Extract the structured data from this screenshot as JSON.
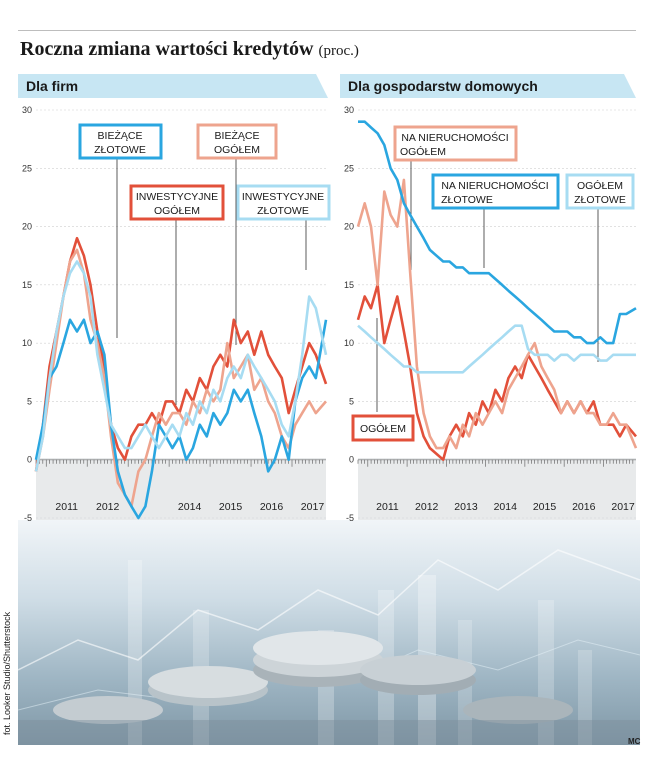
{
  "title": {
    "main": "Roczna zmiana wartości kredytów",
    "unit": "(proc.)"
  },
  "photo_credit": "fot. Looker Studio/Shutterstock",
  "initials": "MC",
  "colors": {
    "red": "#e2503a",
    "salmon": "#eea48e",
    "blue": "#2aa6e0",
    "lightblue": "#a7dcf2",
    "header_bg": "#c7e6f3"
  },
  "chart_data": [
    {
      "panel_title": "Dla firm",
      "type": "line",
      "ylim": [
        -5,
        30
      ],
      "yticks": [
        -5,
        0,
        5,
        10,
        15,
        20,
        25,
        30
      ],
      "xlim": [
        2010.75,
        2017.83
      ],
      "xtick_labels": [
        "2011",
        "2012",
        "2014",
        "2015",
        "2016",
        "2017"
      ],
      "series": [
        {
          "name": "INWESTYCYJNE OGÓŁEM",
          "color": "#e2503a",
          "x": [
            2010.75,
            2010.92,
            2011.08,
            2011.25,
            2011.42,
            2011.58,
            2011.75,
            2011.92,
            2012.08,
            2012.25,
            2012.42,
            2012.58,
            2012.75,
            2012.92,
            2013.08,
            2013.25,
            2013.42,
            2013.58,
            2013.75,
            2013.92,
            2014.08,
            2014.25,
            2014.42,
            2014.58,
            2014.75,
            2014.92,
            2015.08,
            2015.25,
            2015.42,
            2015.58,
            2015.75,
            2015.92,
            2016.08,
            2016.25,
            2016.42,
            2016.58,
            2016.75,
            2016.92,
            2017.08,
            2017.25,
            2017.42,
            2017.58,
            2017.83
          ],
          "y": [
            -1,
            3,
            8,
            11,
            14,
            17,
            19,
            17.5,
            15,
            11,
            8,
            3,
            1,
            0,
            2,
            3,
            3,
            4,
            3,
            5,
            5,
            4,
            6,
            5,
            7,
            6,
            8,
            9,
            8,
            12,
            10,
            11,
            9,
            11,
            9,
            8,
            7,
            4,
            6,
            8,
            10,
            9,
            6.5
          ]
        },
        {
          "name": "BIEŻĄCE OGÓŁEM",
          "color": "#eea48e",
          "x": [
            2010.75,
            2010.92,
            2011.08,
            2011.25,
            2011.42,
            2011.58,
            2011.75,
            2011.92,
            2012.08,
            2012.25,
            2012.42,
            2012.58,
            2012.75,
            2012.92,
            2013.08,
            2013.25,
            2013.42,
            2013.58,
            2013.75,
            2013.92,
            2014.08,
            2014.25,
            2014.42,
            2014.58,
            2014.75,
            2014.92,
            2015.08,
            2015.25,
            2015.42,
            2015.58,
            2015.75,
            2015.92,
            2016.08,
            2016.25,
            2016.42,
            2016.58,
            2016.75,
            2016.92,
            2017.08,
            2017.25,
            2017.42,
            2017.58,
            2017.83
          ],
          "y": [
            -1,
            2,
            6,
            10,
            14,
            17,
            18,
            16,
            12,
            10,
            7,
            2,
            -2,
            -3,
            -4,
            -1,
            0,
            2,
            4,
            3,
            4,
            4,
            3,
            5,
            4,
            6,
            5,
            6,
            10,
            7,
            8,
            9,
            6,
            7,
            5,
            4,
            2,
            1,
            3,
            4,
            5,
            4,
            5
          ]
        },
        {
          "name": "BIEŻĄCE ZŁOTOWE",
          "color": "#2aa6e0",
          "x": [
            2010.75,
            2010.92,
            2011.08,
            2011.25,
            2011.42,
            2011.58,
            2011.75,
            2011.92,
            2012.08,
            2012.25,
            2012.42,
            2012.58,
            2012.75,
            2012.92,
            2013.08,
            2013.25,
            2013.42,
            2013.58,
            2013.75,
            2013.92,
            2014.08,
            2014.25,
            2014.42,
            2014.58,
            2014.75,
            2014.92,
            2015.08,
            2015.25,
            2015.42,
            2015.58,
            2015.75,
            2015.92,
            2016.08,
            2016.25,
            2016.42,
            2016.58,
            2016.75,
            2016.92,
            2017.08,
            2017.25,
            2017.42,
            2017.58,
            2017.83
          ],
          "y": [
            0,
            3,
            7,
            8,
            10,
            12,
            11,
            12,
            10,
            11,
            9,
            3,
            -1,
            -3,
            -4,
            -5,
            -4,
            -1,
            3,
            2,
            1,
            2,
            0,
            1,
            3,
            2,
            4,
            3,
            4,
            6,
            5,
            6,
            4,
            2,
            -1,
            0,
            2,
            0,
            5,
            7,
            8,
            7,
            12
          ]
        },
        {
          "name": "INWESTYCYJNE ZŁOTOWE",
          "color": "#a7dcf2",
          "x": [
            2010.75,
            2010.92,
            2011.08,
            2011.25,
            2011.42,
            2011.58,
            2011.75,
            2011.92,
            2012.08,
            2012.25,
            2012.42,
            2012.58,
            2012.75,
            2012.92,
            2013.08,
            2013.25,
            2013.42,
            2013.58,
            2013.75,
            2013.92,
            2014.08,
            2014.25,
            2014.42,
            2014.58,
            2014.75,
            2014.92,
            2015.08,
            2015.25,
            2015.42,
            2015.58,
            2015.75,
            2015.92,
            2016.08,
            2016.25,
            2016.42,
            2016.58,
            2016.75,
            2016.92,
            2017.08,
            2017.25,
            2017.42,
            2017.58,
            2017.83
          ],
          "y": [
            -1,
            2,
            7,
            11,
            14,
            16,
            17,
            16,
            14,
            9,
            6,
            3,
            2,
            1,
            1,
            2,
            3,
            2,
            1,
            2,
            3,
            2,
            4,
            3,
            5,
            4,
            6,
            5,
            7,
            8,
            7,
            9,
            8,
            7,
            6,
            5,
            3,
            2,
            5,
            9,
            14,
            13,
            9
          ]
        }
      ],
      "annotations": [
        "BIEŻĄCE ZŁOTOWE",
        "BIEŻĄCE OGÓŁEM",
        "INWESTYCYJNE OGÓŁEM",
        "INWESTYCYJNE ZŁOTOWE"
      ]
    },
    {
      "panel_title": "Dla gospodarstw domowych",
      "type": "line",
      "ylim": [
        -5,
        30
      ],
      "yticks": [
        -5,
        0,
        5,
        10,
        15,
        20,
        25,
        30
      ],
      "xlim": [
        2010.75,
        2017.83
      ],
      "xtick_labels": [
        "2011",
        "2012",
        "2013",
        "2014",
        "2015",
        "2016",
        "2017"
      ],
      "series": [
        {
          "name": "OGÓŁEM",
          "color": "#e2503a",
          "x": [
            2010.75,
            2010.92,
            2011.08,
            2011.25,
            2011.42,
            2011.58,
            2011.75,
            2011.92,
            2012.08,
            2012.25,
            2012.42,
            2012.58,
            2012.75,
            2012.92,
            2013.08,
            2013.25,
            2013.42,
            2013.58,
            2013.75,
            2013.92,
            2014.08,
            2014.25,
            2014.42,
            2014.58,
            2014.75,
            2014.92,
            2015.08,
            2015.25,
            2015.42,
            2015.58,
            2015.75,
            2015.92,
            2016.08,
            2016.25,
            2016.42,
            2016.58,
            2016.75,
            2016.92,
            2017.08,
            2017.25,
            2017.42,
            2017.58,
            2017.83
          ],
          "y": [
            12,
            14,
            13,
            15,
            10,
            12,
            14,
            11,
            8,
            4,
            2,
            1,
            0.5,
            0,
            2,
            3,
            2,
            4,
            3,
            5,
            4,
            6,
            5,
            7,
            8,
            7,
            9,
            8,
            7,
            6,
            5,
            4,
            5,
            4,
            5,
            4,
            5,
            3,
            3,
            3,
            2,
            3,
            2
          ]
        },
        {
          "name": "NA NIERUCHOMOŚCI OGÓŁEM",
          "color": "#eea48e",
          "x": [
            2010.75,
            2010.92,
            2011.08,
            2011.25,
            2011.42,
            2011.58,
            2011.75,
            2011.92,
            2012.08,
            2012.25,
            2012.42,
            2012.58,
            2012.75,
            2012.92,
            2013.08,
            2013.25,
            2013.42,
            2013.58,
            2013.75,
            2013.92,
            2014.08,
            2014.25,
            2014.42,
            2014.58,
            2014.75,
            2014.92,
            2015.08,
            2015.25,
            2015.42,
            2015.58,
            2015.75,
            2015.92,
            2016.08,
            2016.25,
            2016.42,
            2016.58,
            2016.75,
            2016.92,
            2017.08,
            2017.25,
            2017.42,
            2017.58,
            2017.83
          ],
          "y": [
            20,
            22,
            20,
            15,
            23,
            21,
            20,
            24,
            16,
            8,
            4,
            2,
            1,
            1,
            2,
            1,
            3,
            2,
            4,
            3,
            4,
            5,
            4,
            6,
            7,
            8,
            9,
            10,
            8,
            7,
            6,
            4,
            5,
            4,
            5,
            4,
            4,
            3,
            3,
            4,
            3,
            3,
            1
          ]
        },
        {
          "name": "NA NIERUCHOMOŚCI ZŁOTOWE",
          "color": "#2aa6e0",
          "x": [
            2010.75,
            2010.92,
            2011.08,
            2011.25,
            2011.42,
            2011.58,
            2011.75,
            2011.92,
            2012.08,
            2012.25,
            2012.42,
            2012.58,
            2012.75,
            2012.92,
            2013.08,
            2013.25,
            2013.42,
            2013.58,
            2013.75,
            2013.92,
            2014.08,
            2014.25,
            2014.42,
            2014.58,
            2014.75,
            2014.92,
            2015.08,
            2015.25,
            2015.42,
            2015.58,
            2015.75,
            2015.92,
            2016.08,
            2016.25,
            2016.42,
            2016.58,
            2016.75,
            2016.92,
            2017.08,
            2017.25,
            2017.42,
            2017.58,
            2017.83
          ],
          "y": [
            29,
            29,
            28.5,
            28,
            27,
            25,
            24,
            22,
            21,
            20,
            19,
            18,
            17.5,
            17,
            17,
            16.5,
            16.5,
            16,
            16,
            16,
            16,
            15.5,
            15,
            14.5,
            14,
            13.5,
            13,
            12.5,
            12,
            11.5,
            11,
            11,
            11,
            10.5,
            10.5,
            10,
            10,
            10.5,
            10,
            10,
            12.5,
            12.5,
            13
          ]
        },
        {
          "name": "OGÓŁEM ZŁOTOWE",
          "color": "#a7dcf2",
          "x": [
            2010.75,
            2010.92,
            2011.08,
            2011.25,
            2011.42,
            2011.58,
            2011.75,
            2011.92,
            2012.08,
            2012.25,
            2012.42,
            2012.58,
            2012.75,
            2012.92,
            2013.08,
            2013.25,
            2013.42,
            2013.58,
            2013.75,
            2013.92,
            2014.08,
            2014.25,
            2014.42,
            2014.58,
            2014.75,
            2014.92,
            2015.08,
            2015.25,
            2015.42,
            2015.58,
            2015.75,
            2015.92,
            2016.08,
            2016.25,
            2016.42,
            2016.58,
            2016.75,
            2016.92,
            2017.08,
            2017.25,
            2017.42,
            2017.58,
            2017.83
          ],
          "y": [
            11.5,
            11,
            10.5,
            10,
            9.5,
            9,
            8.5,
            8,
            8,
            7.5,
            7.5,
            7.5,
            7.5,
            7.5,
            7.5,
            7.5,
            7.5,
            8,
            8.5,
            9,
            9.5,
            10,
            10.5,
            11,
            11.5,
            11.5,
            9.5,
            9,
            9,
            9,
            8.5,
            9,
            9,
            8.5,
            9,
            9,
            9,
            8.5,
            8.5,
            9,
            9,
            9,
            9
          ]
        }
      ],
      "annotations": [
        "NA NIERUCHOMOŚCI OGÓŁEM",
        "NA NIERUCHOMOŚCI ZŁOTOWE",
        "OGÓŁEM ZŁOTOWE",
        "OGÓŁEM"
      ]
    }
  ]
}
